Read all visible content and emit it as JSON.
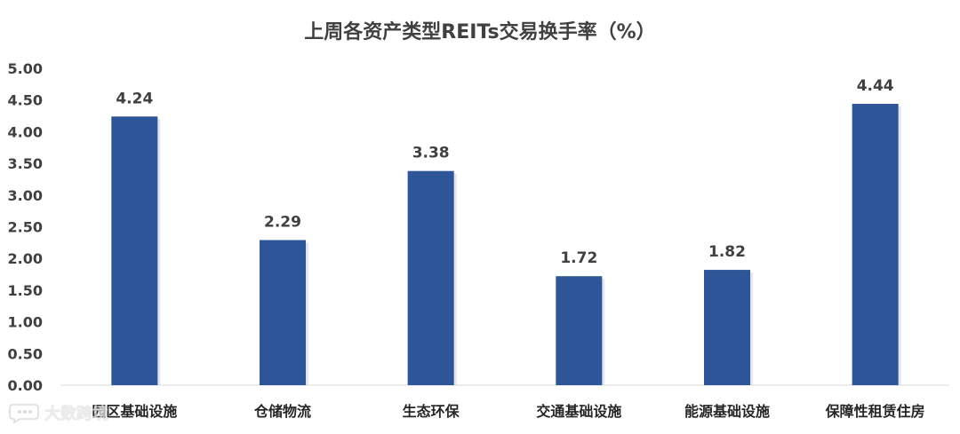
{
  "chart_data": {
    "type": "bar",
    "title": "上周各资产类型REITs交易换手率（%）",
    "categories": [
      "园区基础设施",
      "仓储物流",
      "生态环保",
      "交通基础设施",
      "能源基础设施",
      "保障性租赁住房"
    ],
    "values": [
      4.24,
      2.29,
      3.38,
      1.72,
      1.82,
      4.44
    ],
    "data_labels": [
      "4.24",
      "2.29",
      "3.38",
      "1.72",
      "1.82",
      "4.44"
    ],
    "yticks": [
      "0.00",
      "0.50",
      "1.00",
      "1.50",
      "2.00",
      "2.50",
      "3.00",
      "3.50",
      "4.00",
      "4.50",
      "5.00"
    ],
    "ylim": [
      0,
      5
    ],
    "xlabel": "",
    "ylabel": "",
    "grid": false,
    "legend": "none",
    "bar_color": "#2E5597"
  },
  "watermark": {
    "text": "大数跨境",
    "icon": "chat-bubble-icon"
  }
}
